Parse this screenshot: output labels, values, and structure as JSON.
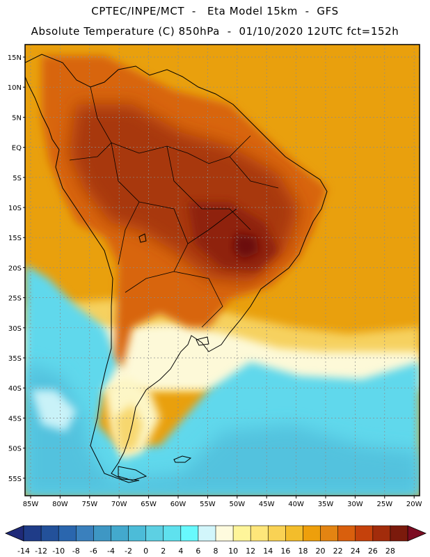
{
  "title": {
    "line1": "CPTEC/INPE/MCT  -   Eta Model 15km  -  GFS",
    "line2": "Absolute Temperature (C) 850hPa  -  01/10/2020 12UTC fct=152h"
  },
  "map": {
    "region": "South America",
    "lat_labels": [
      "15N",
      "10N",
      "5N",
      "EQ",
      "5S",
      "10S",
      "15S",
      "20S",
      "25S",
      "30S",
      "35S",
      "40S",
      "45S",
      "50S",
      "55S"
    ],
    "lon_labels": [
      "85W",
      "80W",
      "75W",
      "70W",
      "65W",
      "60W",
      "55W",
      "50W",
      "45W",
      "40W",
      "35W",
      "30W",
      "25W",
      "20W"
    ],
    "colors": {
      "hot_interior": "#a8380f",
      "hottest": "#6c0f0a",
      "warm": "#d76a12",
      "ocean_warm": "#e9a00d",
      "mild": "#f7d36b",
      "cool_light": "#fdf9d8",
      "cold_cyan": "#60d8ec",
      "colder": "#54c4e0",
      "grid": "#8c8c8c",
      "coast": "#000000"
    }
  },
  "colorbar": {
    "labels": [
      "-14",
      "-12",
      "-10",
      "-8",
      "-6",
      "-4",
      "-2",
      "0",
      "2",
      "4",
      "6",
      "8",
      "10",
      "12",
      "14",
      "16",
      "18",
      "20",
      "22",
      "24",
      "26",
      "28"
    ],
    "colors": [
      "#1f3c88",
      "#23519a",
      "#2a66ae",
      "#3a80bd",
      "#3e97c4",
      "#43a9cd",
      "#4cbcd8",
      "#5dd0e3",
      "#5fe1ee",
      "#68f9fd",
      "#d2f6fb",
      "#fefbde",
      "#fef59a",
      "#fee67a",
      "#f9d254",
      "#f3bd2b",
      "#ee9f0b",
      "#e38412",
      "#d95f0d",
      "#c5410b",
      "#a22c0b",
      "#7b1a0c"
    ],
    "low_arrow": "#1f2a78",
    "high_arrow": "#7c0c22"
  }
}
